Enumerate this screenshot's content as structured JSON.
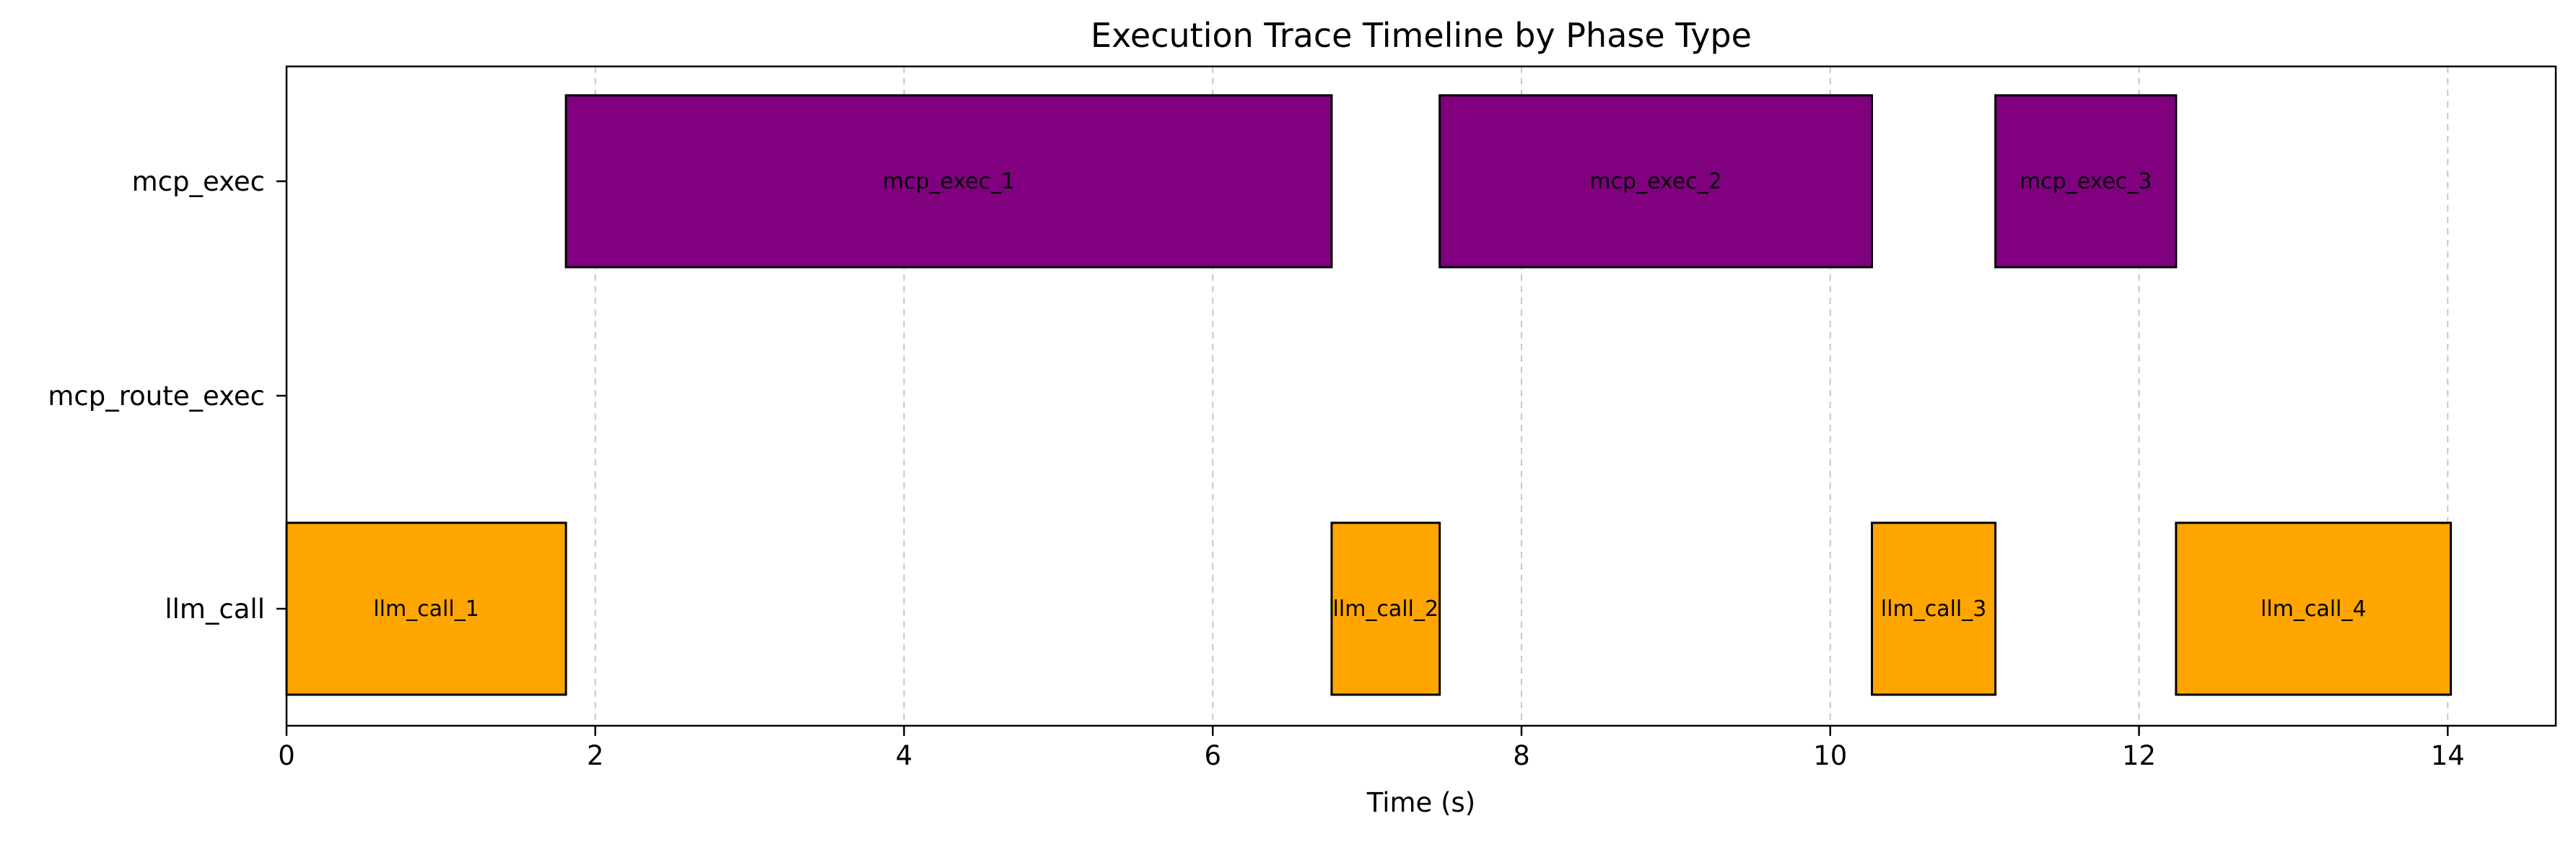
{
  "chart_data": {
    "type": "gantt",
    "title": "Execution Trace Timeline by Phase Type",
    "xlabel": "Time (s)",
    "ylabel": "",
    "xlim": [
      0,
      14.7
    ],
    "xticks": [
      0,
      2,
      4,
      6,
      8,
      10,
      12,
      14
    ],
    "grid": "x-dashed",
    "categories": [
      "mcp_exec",
      "mcp_route_exec",
      "llm_call"
    ],
    "colors": {
      "mcp_exec": "#800080",
      "mcp_route_exec": "#1f77b4",
      "llm_call": "#ffa500"
    },
    "series": [
      {
        "label": "llm_call_1",
        "category": "llm_call",
        "start": 0.0,
        "end": 1.81
      },
      {
        "label": "mcp_exec_1",
        "category": "mcp_exec",
        "start": 1.81,
        "end": 6.77
      },
      {
        "label": "llm_call_2",
        "category": "llm_call",
        "start": 6.77,
        "end": 7.47
      },
      {
        "label": "mcp_exec_2",
        "category": "mcp_exec",
        "start": 7.47,
        "end": 10.27
      },
      {
        "label": "llm_call_3",
        "category": "llm_call",
        "start": 10.27,
        "end": 11.07
      },
      {
        "label": "mcp_exec_3",
        "category": "mcp_exec",
        "start": 11.07,
        "end": 12.24
      },
      {
        "label": "llm_call_4",
        "category": "llm_call",
        "start": 12.24,
        "end": 14.02
      }
    ]
  }
}
